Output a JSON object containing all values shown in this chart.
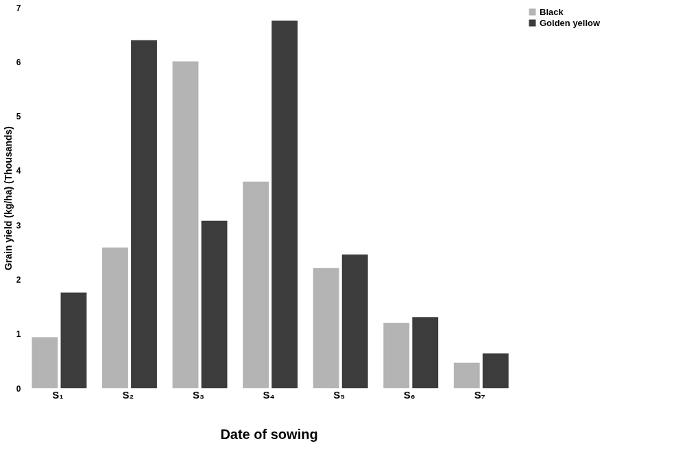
{
  "chart_data": {
    "type": "bar",
    "xlabel": "Date of sowing",
    "ylabel": "Grain yield (kg/ha) (Thousands)",
    "categories": [
      "S₁",
      "S₂",
      "S₃",
      "S₄",
      "S₅",
      "S₆",
      "S₇"
    ],
    "series": [
      {
        "name": "Black",
        "color": "#b4b4b4",
        "values": [
          0.94,
          2.59,
          6.01,
          3.8,
          2.21,
          1.2,
          0.47
        ]
      },
      {
        "name": "Golden yellow",
        "color": "#3c3c3c",
        "values": [
          1.76,
          6.4,
          3.08,
          6.76,
          2.46,
          1.31,
          0.64
        ]
      }
    ],
    "ylim": [
      0,
      7
    ],
    "yticks": [
      0,
      1,
      2,
      3,
      4,
      5,
      6,
      7
    ],
    "grid": false,
    "legend": "right"
  }
}
